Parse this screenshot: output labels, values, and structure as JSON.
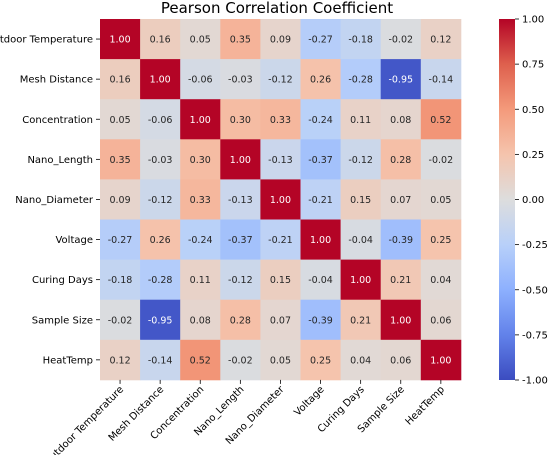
{
  "chart_data": {
    "type": "heatmap",
    "title": "Pearson Correlation Coefficient",
    "xlabel": "",
    "ylabel": "",
    "labels": [
      "Outdoor Temperature",
      "Mesh Distance",
      "Concentration",
      "Nano_Length",
      "Nano_Diameter",
      "Voltage",
      "Curing Days",
      "Sample Size",
      "HeatTemp"
    ],
    "values": [
      [
        1.0,
        0.16,
        0.05,
        0.35,
        0.09,
        -0.27,
        -0.18,
        -0.02,
        0.12
      ],
      [
        0.16,
        1.0,
        -0.06,
        -0.03,
        -0.12,
        0.26,
        -0.28,
        -0.95,
        -0.14
      ],
      [
        0.05,
        -0.06,
        1.0,
        0.3,
        0.33,
        -0.24,
        0.11,
        0.08,
        0.52
      ],
      [
        0.35,
        -0.03,
        0.3,
        1.0,
        -0.13,
        -0.37,
        -0.12,
        0.28,
        -0.02
      ],
      [
        0.09,
        -0.12,
        0.33,
        -0.13,
        1.0,
        -0.21,
        0.15,
        0.07,
        0.05
      ],
      [
        -0.27,
        0.26,
        -0.24,
        -0.37,
        -0.21,
        1.0,
        -0.04,
        -0.39,
        0.25
      ],
      [
        -0.18,
        -0.28,
        0.11,
        -0.12,
        0.15,
        -0.04,
        1.0,
        0.21,
        0.04
      ],
      [
        -0.02,
        -0.95,
        0.08,
        0.28,
        0.07,
        -0.39,
        0.21,
        1.0,
        0.06
      ],
      [
        0.12,
        -0.14,
        0.52,
        -0.02,
        0.05,
        0.25,
        0.04,
        0.06,
        1.0
      ]
    ],
    "colormap": "coolwarm",
    "vmin": -1.0,
    "vmax": 1.0,
    "colorbar_ticks": [
      "1.00",
      "0.75",
      "0.50",
      "0.25",
      "0.00",
      "-0.25",
      "-0.50",
      "-0.75",
      "-1.00"
    ],
    "grid": false,
    "legend": "colorbar right"
  }
}
